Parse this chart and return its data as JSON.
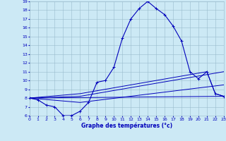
{
  "xlabel": "Graphe des températures (°c)",
  "bg_color": "#cce9f5",
  "line_color": "#0000bb",
  "grid_color": "#99bbcc",
  "xmin": 0,
  "xmax": 23,
  "ymin": 6,
  "ymax": 19,
  "yticks": [
    6,
    7,
    8,
    9,
    10,
    11,
    12,
    13,
    14,
    15,
    16,
    17,
    18,
    19
  ],
  "xticks": [
    0,
    1,
    2,
    3,
    4,
    5,
    6,
    7,
    8,
    9,
    10,
    11,
    12,
    13,
    14,
    15,
    16,
    17,
    18,
    19,
    20,
    21,
    22,
    23
  ],
  "main_curve": {
    "x": [
      0,
      1,
      2,
      3,
      4,
      5,
      6,
      7,
      8,
      9,
      10,
      11,
      12,
      13,
      14,
      15,
      16,
      17,
      18,
      19,
      20,
      21,
      22,
      23
    ],
    "y": [
      8.0,
      7.8,
      7.2,
      7.0,
      6.0,
      6.0,
      6.5,
      7.5,
      9.8,
      10.0,
      11.5,
      14.8,
      17.0,
      18.2,
      19.0,
      18.2,
      17.5,
      16.2,
      14.5,
      11.0,
      10.2,
      11.0,
      8.5,
      8.2
    ]
  },
  "diag_lines": [
    {
      "x": [
        0,
        23
      ],
      "y": [
        8.0,
        8.2
      ]
    },
    {
      "x": [
        0,
        6,
        23
      ],
      "y": [
        8.0,
        7.5,
        9.5
      ]
    },
    {
      "x": [
        0,
        6,
        23
      ],
      "y": [
        8.0,
        8.2,
        11.0
      ]
    },
    {
      "x": [
        0,
        6,
        21,
        22,
        23
      ],
      "y": [
        8.0,
        8.5,
        11.0,
        8.5,
        8.2
      ]
    }
  ]
}
